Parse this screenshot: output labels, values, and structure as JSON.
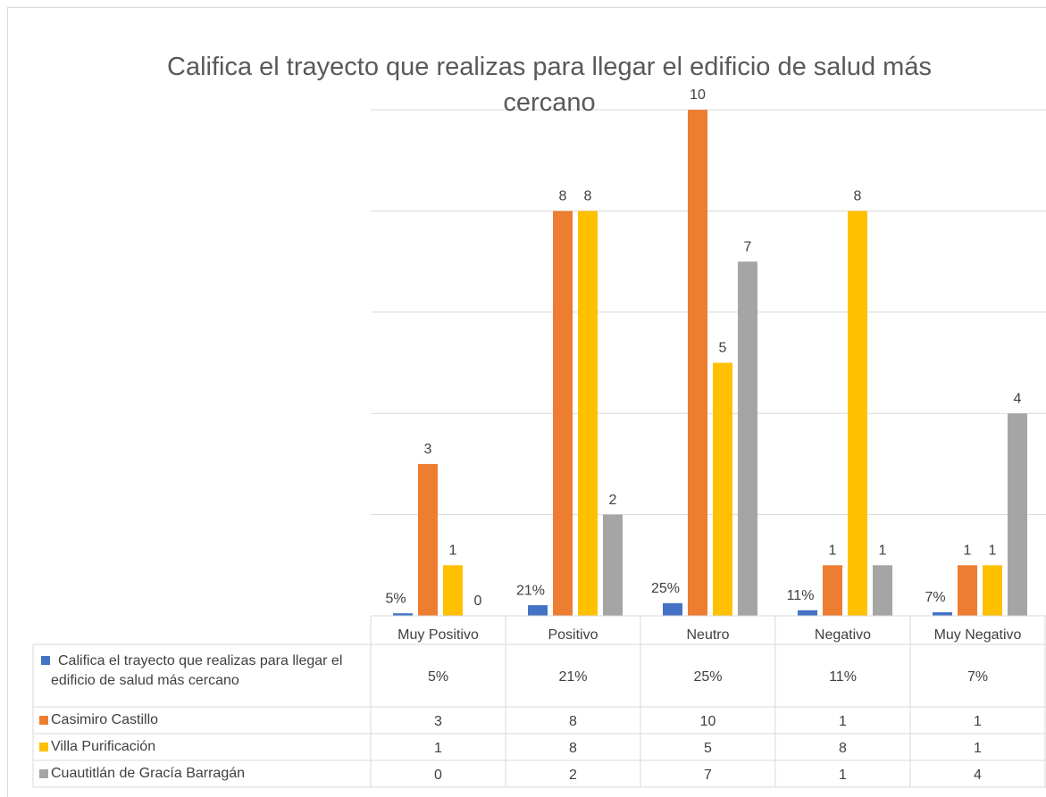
{
  "chart_data": {
    "type": "bar",
    "title": "Califica el trayecto que realizas para llegar el edificio de salud más cercano",
    "categories": [
      "Muy Positivo",
      "Positivo",
      "Neutro",
      "Negativo",
      "Muy Negativo"
    ],
    "series": [
      {
        "name": "Califica el trayecto que realizas para llegar el edificio de salud más cercano",
        "color": "#4472c4",
        "values": [
          0.05,
          0.21,
          0.25,
          0.11,
          0.07
        ],
        "value_labels": [
          "5%",
          "21%",
          "25%",
          "11%",
          "7%"
        ]
      },
      {
        "name": "Casimiro  Castillo",
        "color": "#ed7d31",
        "values": [
          3,
          8,
          10,
          1,
          1
        ]
      },
      {
        "name": "Villa Purificación",
        "color": "#ffc000",
        "values": [
          1,
          8,
          5,
          8,
          1
        ]
      },
      {
        "name": "Cuautitlán de Gracía Barragán",
        "color": "#a5a5a5",
        "values": [
          0,
          2,
          7,
          1,
          4
        ]
      }
    ],
    "ylim": [
      0,
      10
    ],
    "yticks": [
      0,
      2,
      4,
      6,
      8,
      10
    ],
    "grid": true,
    "data_table": true
  }
}
